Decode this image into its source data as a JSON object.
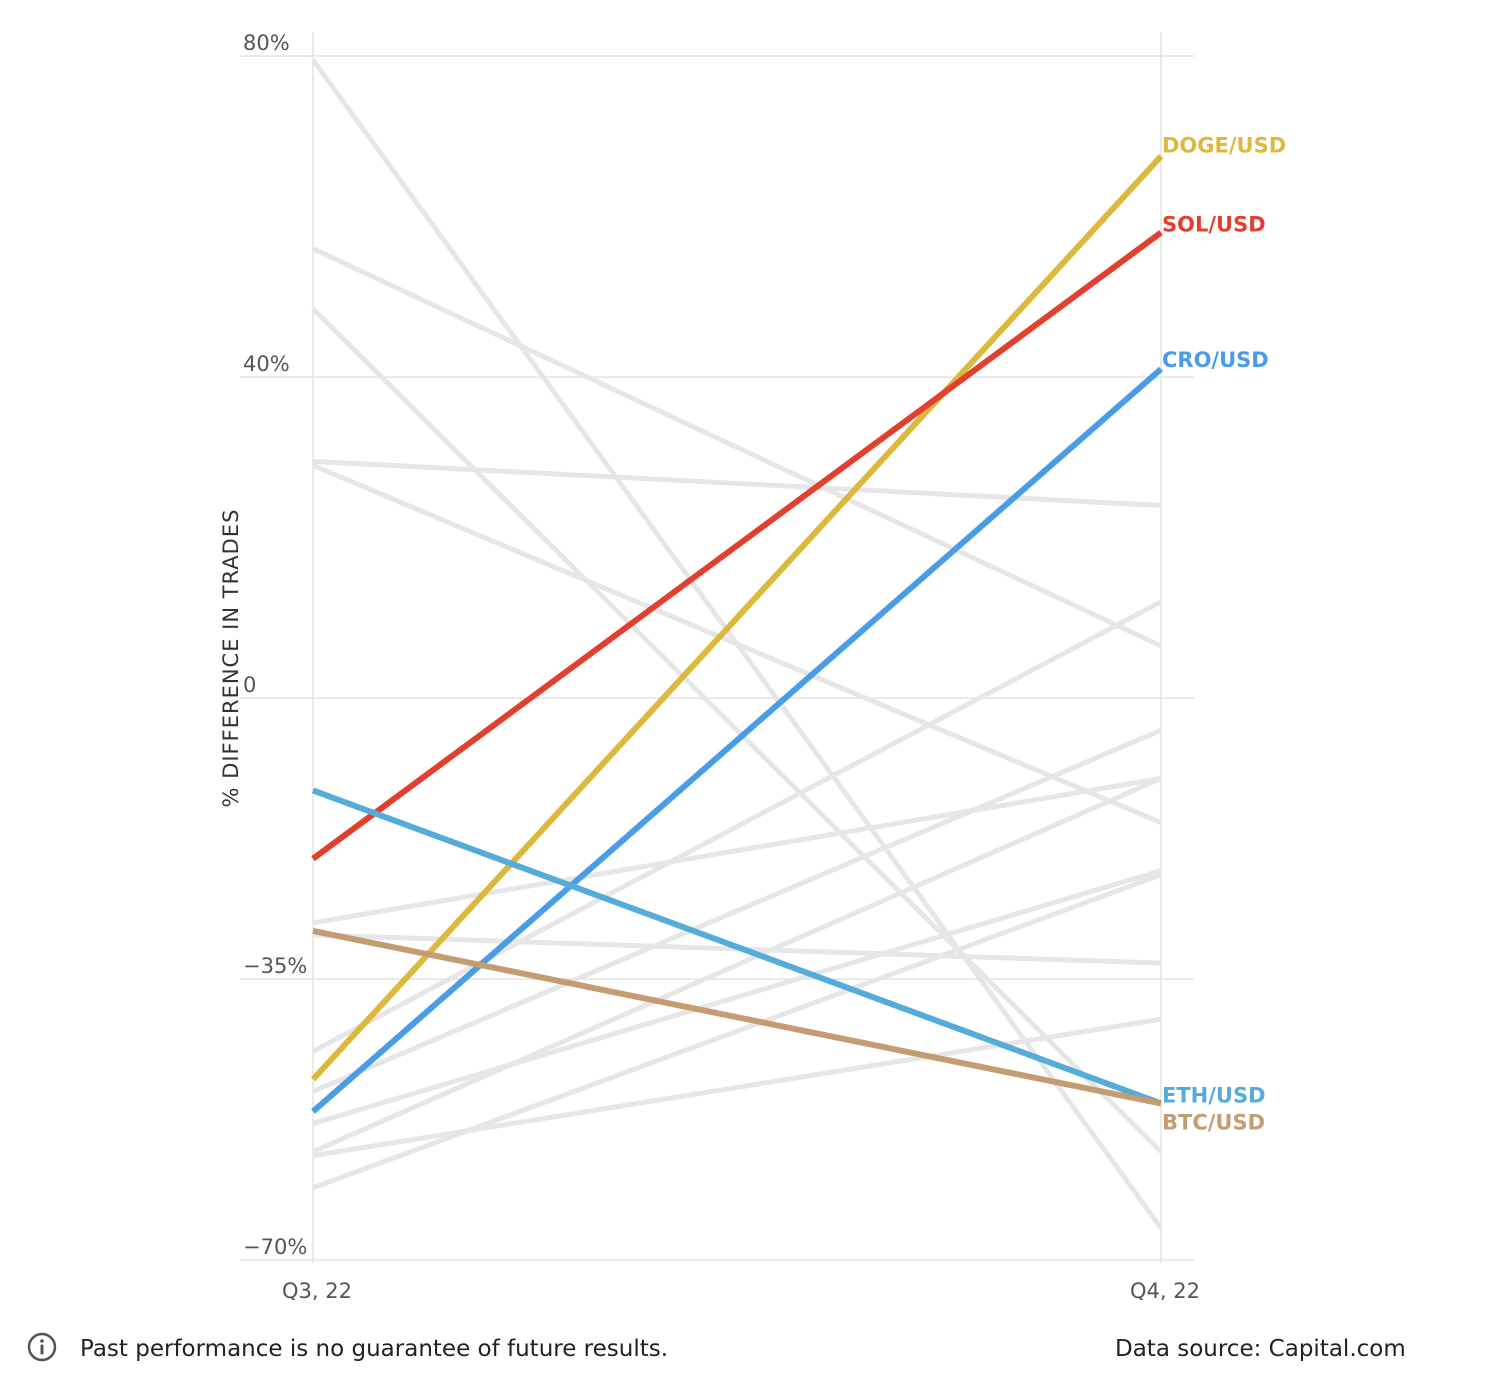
{
  "chart_data": {
    "type": "line",
    "x": [
      "Q3, 22",
      "Q4, 22"
    ],
    "ylabel": "% DIFFERENCE IN TRADES",
    "ylim": [
      -70,
      80
    ],
    "yticks": [
      80,
      40,
      0,
      -35,
      -70
    ],
    "ytick_labels": [
      "80%",
      "40%",
      "0",
      "−35%",
      "−70%"
    ],
    "grid": true,
    "highlighted_series": [
      {
        "name": "DOGE/USD",
        "color": "#dcb93a",
        "values": [
          -47.5,
          67.5
        ]
      },
      {
        "name": "SOL/USD",
        "color": "#e23f2f",
        "values": [
          -20,
          58
        ]
      },
      {
        "name": "CRO/USD",
        "color": "#4a9ce8",
        "values": [
          -51.5,
          41
        ]
      },
      {
        "name": "ETH/USD",
        "color": "#55acd8",
        "values": [
          -11.5,
          -50.5
        ]
      },
      {
        "name": "BTC/USD",
        "color": "#c49c72",
        "values": [
          -29,
          -50.5
        ]
      }
    ],
    "background_series": [
      {
        "values": [
          79.5,
          -66
        ]
      },
      {
        "values": [
          56,
          6.5
        ]
      },
      {
        "values": [
          48.5,
          -56.5
        ]
      },
      {
        "values": [
          29.5,
          24
        ]
      },
      {
        "values": [
          29,
          -15.5
        ]
      },
      {
        "values": [
          -29.5,
          -33
        ]
      },
      {
        "values": [
          -28,
          -10
        ]
      },
      {
        "values": [
          -44,
          12
        ]
      },
      {
        "values": [
          -49,
          -4
        ]
      },
      {
        "values": [
          -53,
          -21.5
        ]
      },
      {
        "values": [
          -56.5,
          -10
        ]
      },
      {
        "values": [
          -61,
          -22
        ]
      },
      {
        "values": [
          -57,
          -40
        ]
      }
    ],
    "background_color": "#e6e6e6"
  },
  "footer": {
    "disclaimer": "Past performance is no guarantee of future results.",
    "source": "Data source: Capital.com",
    "info_icon": "info-circle-icon"
  }
}
